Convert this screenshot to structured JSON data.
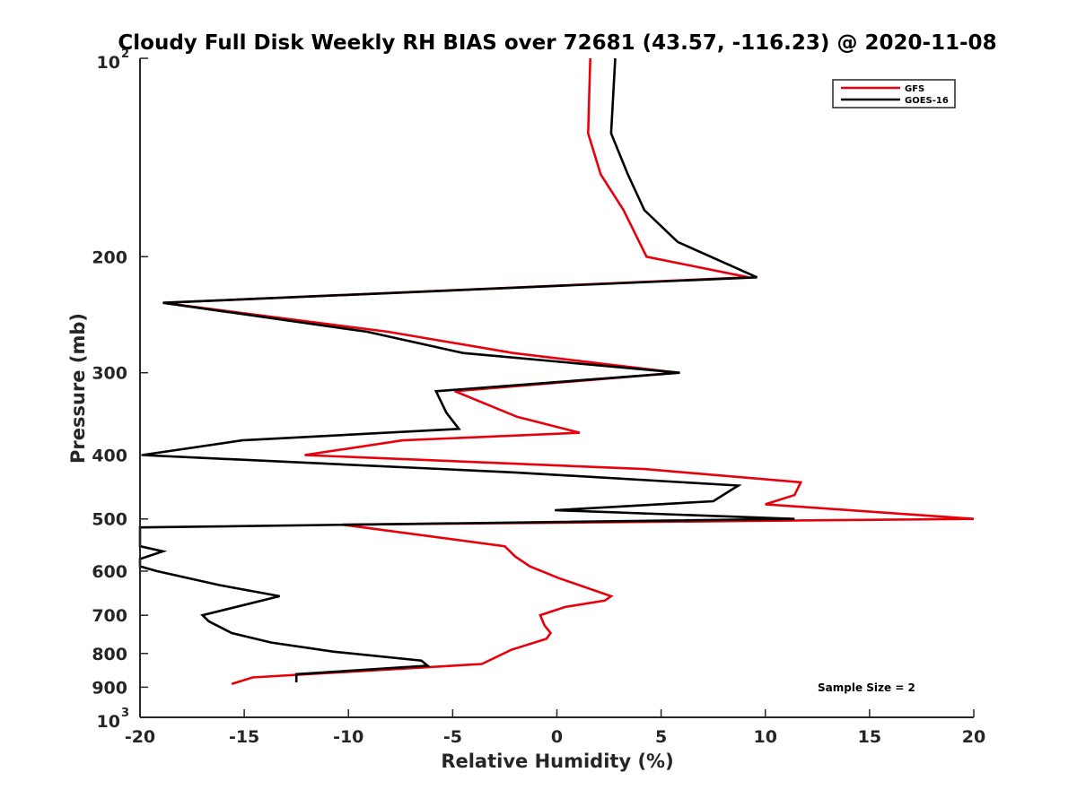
{
  "chart_data": {
    "type": "line",
    "title": "Cloudy Full Disk Weekly RH BIAS over 72681 (43.57, -116.23) @ 2020-11-08",
    "xlabel": "Relative Humidity (%)",
    "ylabel": "Pressure (mb)",
    "xlim": [
      -20,
      20
    ],
    "ylim": [
      100,
      1000
    ],
    "y_scale": "log",
    "y_reversed": true,
    "grid": false,
    "legend_position": "top-right",
    "x_ticks": [
      -20,
      -15,
      -10,
      -5,
      0,
      5,
      10,
      15,
      20
    ],
    "x_tick_labels": [
      "-20",
      "-15",
      "-10",
      "-5",
      "0",
      "5",
      "10",
      "15",
      "20"
    ],
    "y_ticks": [
      {
        "value": 100,
        "base": "10",
        "exp": "2"
      },
      {
        "value": 200,
        "label": "200"
      },
      {
        "value": 300,
        "label": "300"
      },
      {
        "value": 400,
        "label": "400"
      },
      {
        "value": 500,
        "label": "500"
      },
      {
        "value": 600,
        "label": "600"
      },
      {
        "value": 700,
        "label": "700"
      },
      {
        "value": 800,
        "label": "800"
      },
      {
        "value": 900,
        "label": "900"
      },
      {
        "value": 1000,
        "base": "10",
        "exp": "3"
      }
    ],
    "series": [
      {
        "name": "GFS",
        "color": "#e8000b",
        "points": [
          [
            1.6,
            100
          ],
          [
            1.5,
            130
          ],
          [
            2.1,
            150
          ],
          [
            3.2,
            170
          ],
          [
            4.3,
            200
          ],
          [
            9.2,
            215
          ],
          [
            -18.9,
            235
          ],
          [
            -8.1,
            260
          ],
          [
            -2.1,
            280
          ],
          [
            5.8,
            300
          ],
          [
            -4.9,
            320
          ],
          [
            -1.9,
            350
          ],
          [
            1.1,
            370
          ],
          [
            -7.4,
            380
          ],
          [
            -12.1,
            400
          ],
          [
            4.2,
            420
          ],
          [
            11.7,
            440
          ],
          [
            11.4,
            460
          ],
          [
            10.0,
            475
          ],
          [
            20.0,
            500
          ],
          [
            -10.3,
            510
          ],
          [
            -2.5,
            550
          ],
          [
            -2.0,
            570
          ],
          [
            -1.3,
            590
          ],
          [
            0.1,
            615
          ],
          [
            2.6,
            655
          ],
          [
            2.3,
            665
          ],
          [
            0.4,
            680
          ],
          [
            -0.8,
            700
          ],
          [
            -0.6,
            725
          ],
          [
            -0.3,
            745
          ],
          [
            -0.5,
            760
          ],
          [
            -2.2,
            790
          ],
          [
            -3.6,
            830
          ],
          [
            -14.6,
            870
          ],
          [
            -15.6,
            890
          ]
        ]
      },
      {
        "name": "GOES-16",
        "color": "#000000",
        "points": [
          [
            2.8,
            100
          ],
          [
            2.6,
            130
          ],
          [
            3.4,
            150
          ],
          [
            4.2,
            170
          ],
          [
            5.8,
            190
          ],
          [
            9.6,
            215
          ],
          [
            -18.9,
            235
          ],
          [
            -9.1,
            260
          ],
          [
            -4.5,
            280
          ],
          [
            5.9,
            300
          ],
          [
            -5.8,
            320
          ],
          [
            -5.3,
            345
          ],
          [
            -4.7,
            365
          ],
          [
            -15.1,
            380
          ],
          [
            -19.9,
            400
          ],
          [
            -2.0,
            425
          ],
          [
            8.7,
            445
          ],
          [
            7.5,
            470
          ],
          [
            -0.1,
            485
          ],
          [
            11.4,
            500
          ],
          [
            -20.0,
            515
          ],
          [
            -20.0,
            550
          ],
          [
            -18.9,
            560
          ],
          [
            -20.0,
            575
          ],
          [
            -20.0,
            590
          ],
          [
            -19.2,
            600
          ],
          [
            -16.2,
            630
          ],
          [
            -13.3,
            655
          ],
          [
            -17.0,
            700
          ],
          [
            -16.7,
            715
          ],
          [
            -15.6,
            745
          ],
          [
            -13.7,
            770
          ],
          [
            -10.7,
            795
          ],
          [
            -6.5,
            820
          ],
          [
            -6.2,
            835
          ],
          [
            -12.5,
            860
          ],
          [
            -12.5,
            885
          ]
        ]
      }
    ],
    "annotations": [
      "Sample Size = 2"
    ]
  }
}
